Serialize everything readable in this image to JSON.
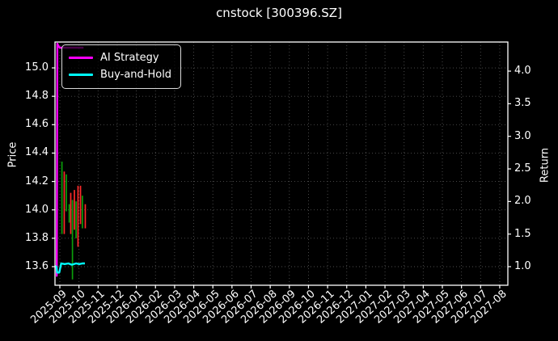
{
  "chart_data": {
    "type": "line",
    "title": "cnstock [300396.SZ]",
    "background": "#000000",
    "foreground": "#ffffff",
    "axes": {
      "x": {
        "tick_labels": [
          "2025-09",
          "2025-10",
          "2025-11",
          "2025-12",
          "2026-01",
          "2026-02",
          "2026-03",
          "2026-04",
          "2026-05",
          "2026-06",
          "2026-07",
          "2026-08",
          "2026-09",
          "2026-10",
          "2026-11",
          "2026-12",
          "2027-01",
          "2027-02",
          "2027-03",
          "2027-04",
          "2027-05",
          "2027-06",
          "2027-07",
          "2027-08"
        ],
        "label_rotation_deg": 42
      },
      "y_left": {
        "label": "Price",
        "tick_labels": [
          "15.0",
          "14.8",
          "14.6",
          "14.4",
          "14.2",
          "14.0",
          "13.8",
          "13.6"
        ],
        "tick_values": [
          15.0,
          14.8,
          14.6,
          14.4,
          14.2,
          14.0,
          13.8,
          13.6
        ]
      },
      "y_right": {
        "label": "Return",
        "tick_labels": [
          "4.0",
          "3.5",
          "3.0",
          "2.5",
          "2.0",
          "1.5",
          "1.0"
        ],
        "tick_values": [
          4.0,
          3.5,
          3.0,
          2.5,
          2.0,
          1.5,
          1.0
        ]
      }
    },
    "grid": {
      "visible": true,
      "style": "dotted",
      "color": "#4f4f4f"
    },
    "legend": {
      "position": "upper-left",
      "items": [
        {
          "label": "AI Strategy",
          "color": "#ff00ff"
        },
        {
          "label": "Buy-and-Hold",
          "color": "#00ffff"
        }
      ]
    },
    "series": [
      {
        "name": "AI Strategy",
        "axis": "return",
        "color": "#ff00ff",
        "points": [
          [
            -0.25,
            1.0
          ],
          [
            -0.18,
            1.0
          ],
          [
            -0.16,
            0.86
          ],
          [
            -0.13,
            4.42
          ],
          [
            -0.07,
            4.38
          ],
          [
            0.0,
            4.36
          ],
          [
            1.24,
            4.36
          ]
        ]
      },
      {
        "name": "Buy-and-Hold",
        "axis": "return",
        "color": "#00ffff",
        "points": [
          [
            -0.25,
            1.01
          ],
          [
            -0.18,
            1.0
          ],
          [
            -0.14,
            0.91
          ],
          [
            -0.03,
            0.91
          ],
          [
            0.07,
            1.05
          ],
          [
            0.25,
            1.04
          ],
          [
            0.45,
            1.05
          ],
          [
            0.62,
            1.03
          ],
          [
            0.85,
            1.05
          ],
          [
            1.02,
            1.04
          ],
          [
            1.18,
            1.05
          ],
          [
            1.31,
            1.05
          ]
        ]
      }
    ],
    "price_bars": {
      "up_color": "#0b9e0b",
      "down_color": "#ff2a2a",
      "bars": [
        {
          "x": 0.11,
          "high": 14.34,
          "low": 13.83,
          "dir": "up"
        },
        {
          "x": 0.23,
          "high": 14.27,
          "low": 13.83,
          "dir": "down"
        },
        {
          "x": 0.34,
          "high": 14.25,
          "low": 13.99,
          "dir": "up"
        },
        {
          "x": 0.49,
          "high": 14.04,
          "low": 13.91,
          "dir": "up"
        },
        {
          "x": 0.57,
          "high": 14.12,
          "low": 13.83,
          "dir": "down"
        },
        {
          "x": 0.66,
          "high": 14.07,
          "low": 13.51,
          "dir": "up"
        },
        {
          "x": 0.76,
          "high": 14.14,
          "low": 13.86,
          "dir": "down"
        },
        {
          "x": 0.85,
          "high": 14.06,
          "low": 13.8,
          "dir": "up"
        },
        {
          "x": 0.95,
          "high": 14.17,
          "low": 13.74,
          "dir": "down"
        },
        {
          "x": 1.08,
          "high": 14.17,
          "low": 13.9,
          "dir": "down"
        },
        {
          "x": 1.18,
          "high": 14.1,
          "low": 13.87,
          "dir": "up"
        },
        {
          "x": 1.33,
          "high": 14.04,
          "low": 13.87,
          "dir": "down"
        }
      ]
    }
  }
}
